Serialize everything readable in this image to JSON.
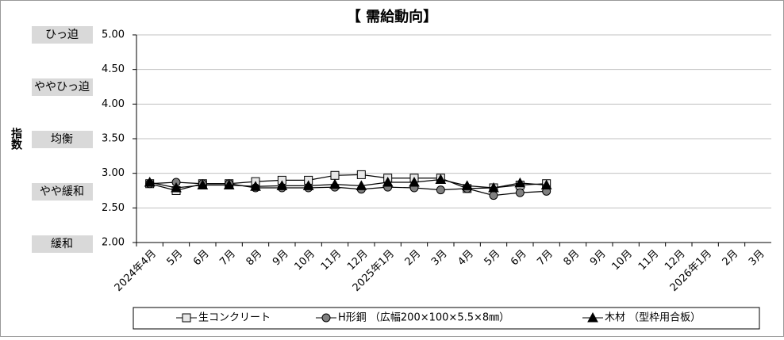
{
  "chart_data": {
    "type": "line",
    "title": "【 需給動向】",
    "y_label": "指数",
    "levels": [
      "ひっ迫",
      "ややひっ迫",
      "均衡",
      "やや緩和",
      "緩和"
    ],
    "categories": [
      "2024年4月",
      "5月",
      "6月",
      "7月",
      "8月",
      "9月",
      "10月",
      "11月",
      "12月",
      "2025年1月",
      "2月",
      "3月",
      "4月",
      "5月",
      "6月",
      "7月",
      "8月",
      "9月",
      "10月",
      "11月",
      "12月",
      "2026年1月",
      "2月",
      "3月"
    ],
    "series": [
      {
        "name": "生コンクリート",
        "color": "#000000",
        "marker": "square",
        "marker_fill": "#e8e8e8",
        "values": [
          2.85,
          2.75,
          2.85,
          2.85,
          2.88,
          2.9,
          2.9,
          2.97,
          2.98,
          2.93,
          2.93,
          2.93,
          2.78,
          2.79,
          2.83,
          2.85,
          null,
          null,
          null,
          null,
          null,
          null,
          null,
          null
        ]
      },
      {
        "name": "H形鋼 （広幅200×100×5.5×8㎜）",
        "color": "#000000",
        "marker": "circle",
        "marker_fill": "#808080",
        "values": [
          2.85,
          2.87,
          2.85,
          2.85,
          2.79,
          2.79,
          2.79,
          2.8,
          2.77,
          2.8,
          2.79,
          2.76,
          2.78,
          2.68,
          2.72,
          2.74,
          null,
          null,
          null,
          null,
          null,
          null,
          null,
          null
        ]
      },
      {
        "name": "木材 （型枠用合板）",
        "color": "#000000",
        "marker": "triangle",
        "marker_fill": "#000000",
        "values": [
          2.87,
          2.79,
          2.83,
          2.83,
          2.81,
          2.82,
          2.82,
          2.84,
          2.82,
          2.87,
          2.87,
          2.91,
          2.82,
          2.79,
          2.86,
          2.83,
          null,
          null,
          null,
          null,
          null,
          null,
          null,
          null
        ]
      }
    ],
    "ylim": [
      2,
      5
    ],
    "yticks": [
      {
        "value": 2,
        "label": "2.00"
      },
      {
        "value": 2.5,
        "label": "2.50"
      },
      {
        "value": 3,
        "label": "3.00"
      },
      {
        "value": 3.5,
        "label": "3.50"
      },
      {
        "value": 4,
        "label": "4.00"
      },
      {
        "value": 4.5,
        "label": "4.50"
      },
      {
        "value": 5,
        "label": "5.00"
      }
    ],
    "grid": true
  }
}
